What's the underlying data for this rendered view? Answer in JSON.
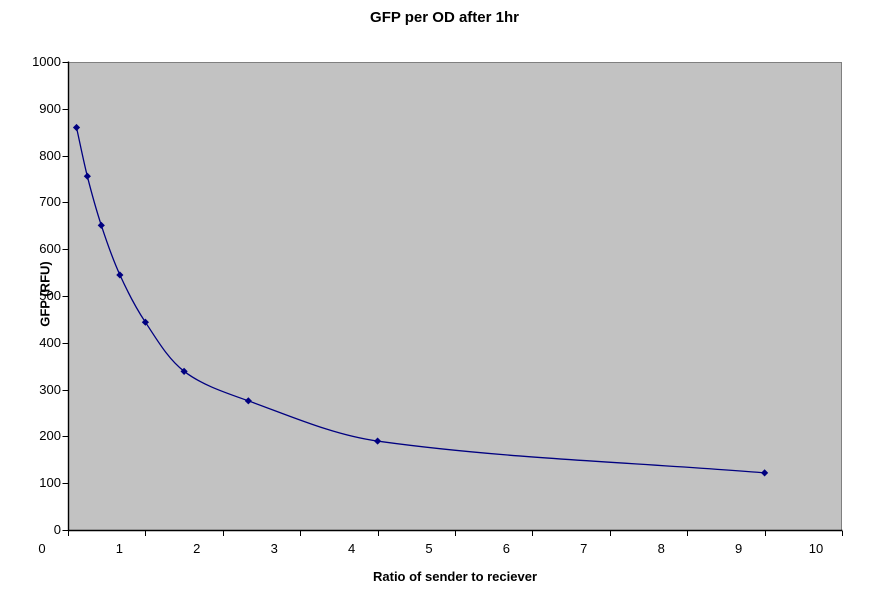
{
  "chart_data": {
    "type": "scatter",
    "style": "smoothed-line-with-markers",
    "title": "GFP per OD after 1hr",
    "xlabel": "Ratio of sender to reciever",
    "ylabel": "GFP (RFU)",
    "xlim": [
      0,
      10
    ],
    "ylim": [
      0,
      1000
    ],
    "x_ticks": [
      0,
      1,
      2,
      3,
      4,
      5,
      6,
      7,
      8,
      9,
      10
    ],
    "y_ticks": [
      0,
      100,
      200,
      300,
      400,
      500,
      600,
      700,
      800,
      900,
      1000
    ],
    "grid": false,
    "legend": "none",
    "series": [
      {
        "marker": "diamond",
        "smooth": true,
        "color": "#000080",
        "x": [
          0.11,
          0.25,
          0.43,
          0.67,
          1.0,
          1.5,
          2.33,
          4.0,
          9.0
        ],
        "y": [
          860,
          756,
          651,
          545,
          444,
          339,
          276,
          190,
          122
        ]
      }
    ],
    "colors": {
      "plot_background": "#c2c2c2",
      "plot_border": "#7f7f7f",
      "axis": "#000000",
      "text": "#000000",
      "series_line": "#000080"
    }
  }
}
